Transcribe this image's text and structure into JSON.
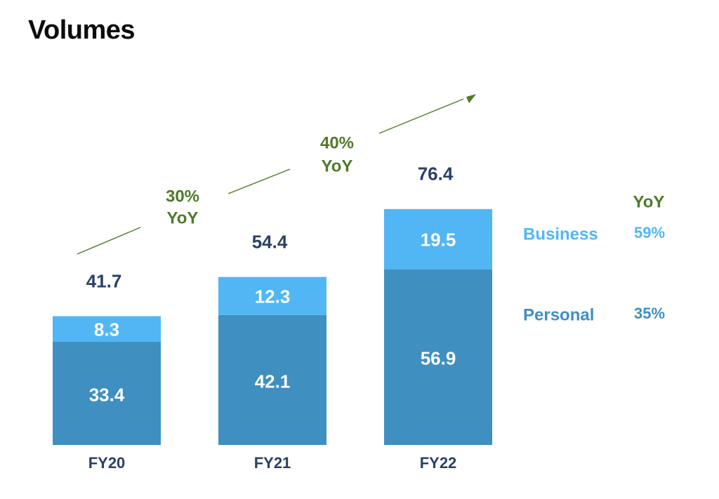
{
  "page": {
    "title": "Volumes"
  },
  "colors": {
    "personal": "#3f8fc1",
    "business": "#52b6f5",
    "total_label": "#2a4166",
    "growth": "#4f7a2b",
    "legend_business": "#52b6f5",
    "legend_personal": "#3f8fc1",
    "axis_label": "#2a4166"
  },
  "chart_data": {
    "type": "bar",
    "stacked": true,
    "categories": [
      "FY20",
      "FY21",
      "FY22"
    ],
    "series": [
      {
        "name": "Personal",
        "values": [
          33.4,
          42.1,
          56.9
        ]
      },
      {
        "name": "Business",
        "values": [
          8.3,
          12.3,
          19.5
        ]
      }
    ],
    "totals": [
      41.7,
      54.4,
      76.4
    ],
    "growth_annotations": [
      {
        "label_line1": "30%",
        "label_line2": "YoY",
        "from": "FY20",
        "to": "FY21"
      },
      {
        "label_line1": "40%",
        "label_line2": "YoY",
        "from": "FY21",
        "to": "FY22"
      }
    ],
    "legend": {
      "header": "YoY",
      "items": [
        {
          "series": "Business",
          "label": "Business",
          "yoy": "59%"
        },
        {
          "series": "Personal",
          "label": "Personal",
          "yoy": "35%"
        }
      ]
    },
    "ylim": [
      0,
      90
    ],
    "grid": false,
    "xlabel": "",
    "ylabel": ""
  }
}
